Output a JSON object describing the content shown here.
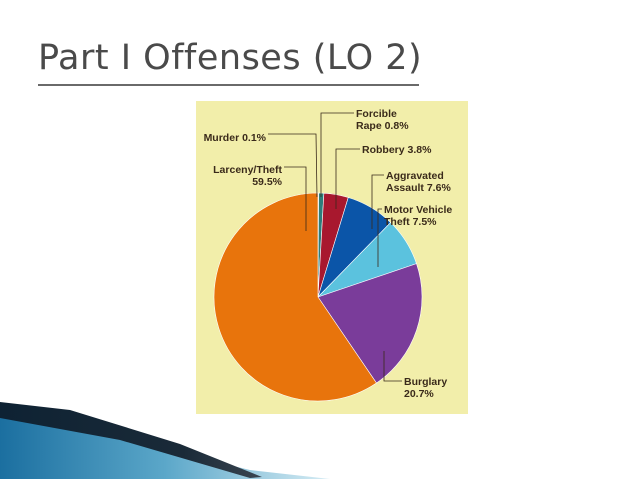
{
  "slide": {
    "title": "Part I Offenses (LO 2)"
  },
  "colors": {
    "panel_background": "#f2eeaa",
    "title_text": "#4a4a4a",
    "label_text": "#3a2a1a"
  },
  "chart_data": {
    "type": "pie",
    "title": "",
    "start": "12 o'clock, clockwise",
    "slices": [
      {
        "name": "Murder",
        "value": 0.1,
        "color": "#1e8a3e",
        "label_lines": [
          "Murder 0.1%"
        ]
      },
      {
        "name": "Forcible Rape",
        "value": 0.8,
        "color": "#2e7d7a",
        "label_lines": [
          "Forcible",
          "Rape 0.8%"
        ]
      },
      {
        "name": "Robbery",
        "value": 3.8,
        "color": "#a8182e",
        "label_lines": [
          "Robbery 3.8%"
        ]
      },
      {
        "name": "Aggravated Assault",
        "value": 7.6,
        "color": "#0b55a8",
        "label_lines": [
          "Aggravated",
          "Assault 7.6%"
        ]
      },
      {
        "name": "Motor Vehicle Theft",
        "value": 7.5,
        "color": "#5bc2de",
        "label_lines": [
          "Motor Vehicle",
          "Theft 7.5%"
        ]
      },
      {
        "name": "Burglary",
        "value": 20.7,
        "color": "#7a3c9a",
        "label_lines": [
          "Burglary",
          "20.7%"
        ]
      },
      {
        "name": "Larceny/Theft",
        "value": 59.5,
        "color": "#e8740c",
        "label_lines": [
          "Larceny/Theft",
          "59.5%"
        ]
      }
    ]
  }
}
